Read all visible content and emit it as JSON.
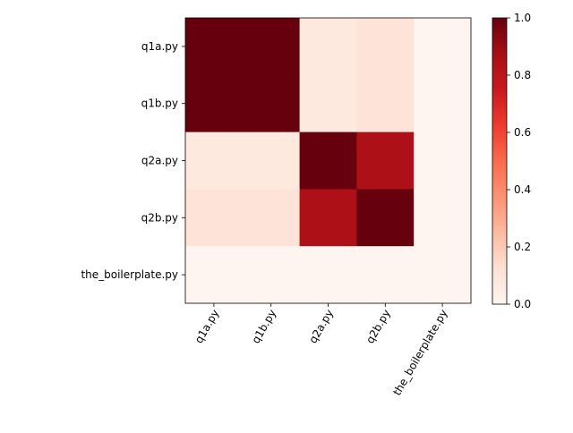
{
  "chart_data": {
    "type": "heatmap",
    "title": "",
    "xlabel": "",
    "ylabel": "",
    "rows": [
      "q1a.py",
      "q1b.py",
      "q2a.py",
      "q2b.py",
      "the_boilerplate.py"
    ],
    "columns": [
      "q1a.py",
      "q1b.py",
      "q2a.py",
      "q2b.py",
      "the_boilerplate.py"
    ],
    "values": [
      [
        1.0,
        1.0,
        0.07,
        0.1,
        0.0
      ],
      [
        1.0,
        1.0,
        0.07,
        0.1,
        0.0
      ],
      [
        0.07,
        0.07,
        1.0,
        0.85,
        0.0
      ],
      [
        0.1,
        0.1,
        0.85,
        1.0,
        0.0
      ],
      [
        0.0,
        0.0,
        0.0,
        0.0,
        0.0
      ]
    ],
    "colormap": "Reds",
    "colorbar": {
      "range": [
        0.0,
        1.0
      ],
      "ticks": [
        "0.0",
        "0.2",
        "0.4",
        "0.6",
        "0.8",
        "1.0"
      ]
    },
    "grid": false,
    "x_tick_rotation_deg": 60
  }
}
